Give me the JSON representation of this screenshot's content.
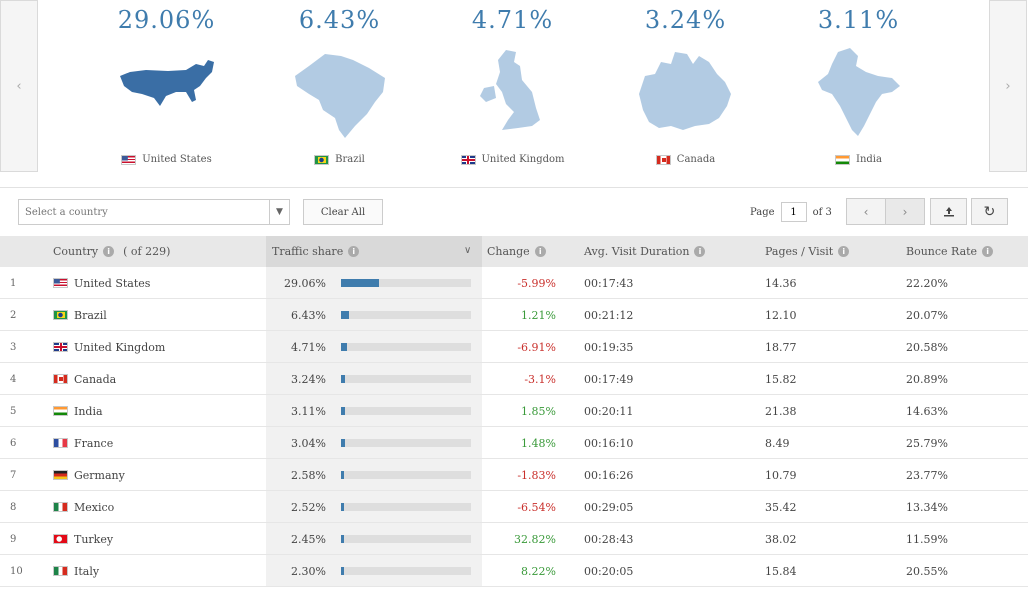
{
  "carousel": {
    "prev_glyph": "‹",
    "next_glyph": "›",
    "cards": [
      {
        "pct": "29.06%",
        "country": "United States",
        "flag": "us",
        "map": "us"
      },
      {
        "pct": "6.43%",
        "country": "Brazil",
        "flag": "br",
        "map": "br"
      },
      {
        "pct": "4.71%",
        "country": "United Kingdom",
        "flag": "gb",
        "map": "gb"
      },
      {
        "pct": "3.24%",
        "country": "Canada",
        "flag": "ca",
        "map": "ca"
      },
      {
        "pct": "3.11%",
        "country": "India",
        "flag": "in",
        "map": "in"
      }
    ]
  },
  "controls": {
    "select_placeholder": "Select a country",
    "clear_all_label": "Clear All",
    "page_label": "Page",
    "page_value": "1",
    "page_of": "of 3"
  },
  "table": {
    "headers": {
      "country": "Country",
      "country_count": "( of 229)",
      "traffic_share": "Traffic share",
      "change": "Change",
      "avg_visit_duration": "Avg. Visit Duration",
      "pages_visit": "Pages / Visit",
      "bounce_rate": "Bounce Rate"
    },
    "rows": [
      {
        "rank": "1",
        "country": "United States",
        "flag": "us",
        "share": "29.06%",
        "share_value": 29.06,
        "change": "-5.99%",
        "dir": "neg",
        "duration": "00:17:43",
        "pages": "14.36",
        "bounce": "22.20%"
      },
      {
        "rank": "2",
        "country": "Brazil",
        "flag": "br",
        "share": "6.43%",
        "share_value": 6.43,
        "change": "1.21%",
        "dir": "pos",
        "duration": "00:21:12",
        "pages": "12.10",
        "bounce": "20.07%"
      },
      {
        "rank": "3",
        "country": "United Kingdom",
        "flag": "gb",
        "share": "4.71%",
        "share_value": 4.71,
        "change": "-6.91%",
        "dir": "neg",
        "duration": "00:19:35",
        "pages": "18.77",
        "bounce": "20.58%"
      },
      {
        "rank": "4",
        "country": "Canada",
        "flag": "ca",
        "share": "3.24%",
        "share_value": 3.24,
        "change": "-3.1%",
        "dir": "neg",
        "duration": "00:17:49",
        "pages": "15.82",
        "bounce": "20.89%"
      },
      {
        "rank": "5",
        "country": "India",
        "flag": "in",
        "share": "3.11%",
        "share_value": 3.11,
        "change": "1.85%",
        "dir": "pos",
        "duration": "00:20:11",
        "pages": "21.38",
        "bounce": "14.63%"
      },
      {
        "rank": "6",
        "country": "France",
        "flag": "fr",
        "share": "3.04%",
        "share_value": 3.04,
        "change": "1.48%",
        "dir": "pos",
        "duration": "00:16:10",
        "pages": "8.49",
        "bounce": "25.79%"
      },
      {
        "rank": "7",
        "country": "Germany",
        "flag": "de",
        "share": "2.58%",
        "share_value": 2.58,
        "change": "-1.83%",
        "dir": "neg",
        "duration": "00:16:26",
        "pages": "10.79",
        "bounce": "23.77%"
      },
      {
        "rank": "8",
        "country": "Mexico",
        "flag": "mx",
        "share": "2.52%",
        "share_value": 2.52,
        "change": "-6.54%",
        "dir": "neg",
        "duration": "00:29:05",
        "pages": "35.42",
        "bounce": "13.34%"
      },
      {
        "rank": "9",
        "country": "Turkey",
        "flag": "tr",
        "share": "2.45%",
        "share_value": 2.45,
        "change": "32.82%",
        "dir": "pos",
        "duration": "00:28:43",
        "pages": "38.02",
        "bounce": "11.59%"
      },
      {
        "rank": "10",
        "country": "Italy",
        "flag": "it",
        "share": "2.30%",
        "share_value": 2.3,
        "change": "8.22%",
        "dir": "pos",
        "duration": "00:20:05",
        "pages": "15.84",
        "bounce": "20.55%"
      }
    ]
  },
  "colors": {
    "accent": "#3f7cad",
    "map_primary": "#3a6ea5",
    "map_secondary": "#b2cbe3",
    "negative": "#c9302c",
    "positive": "#3a9a3a"
  }
}
